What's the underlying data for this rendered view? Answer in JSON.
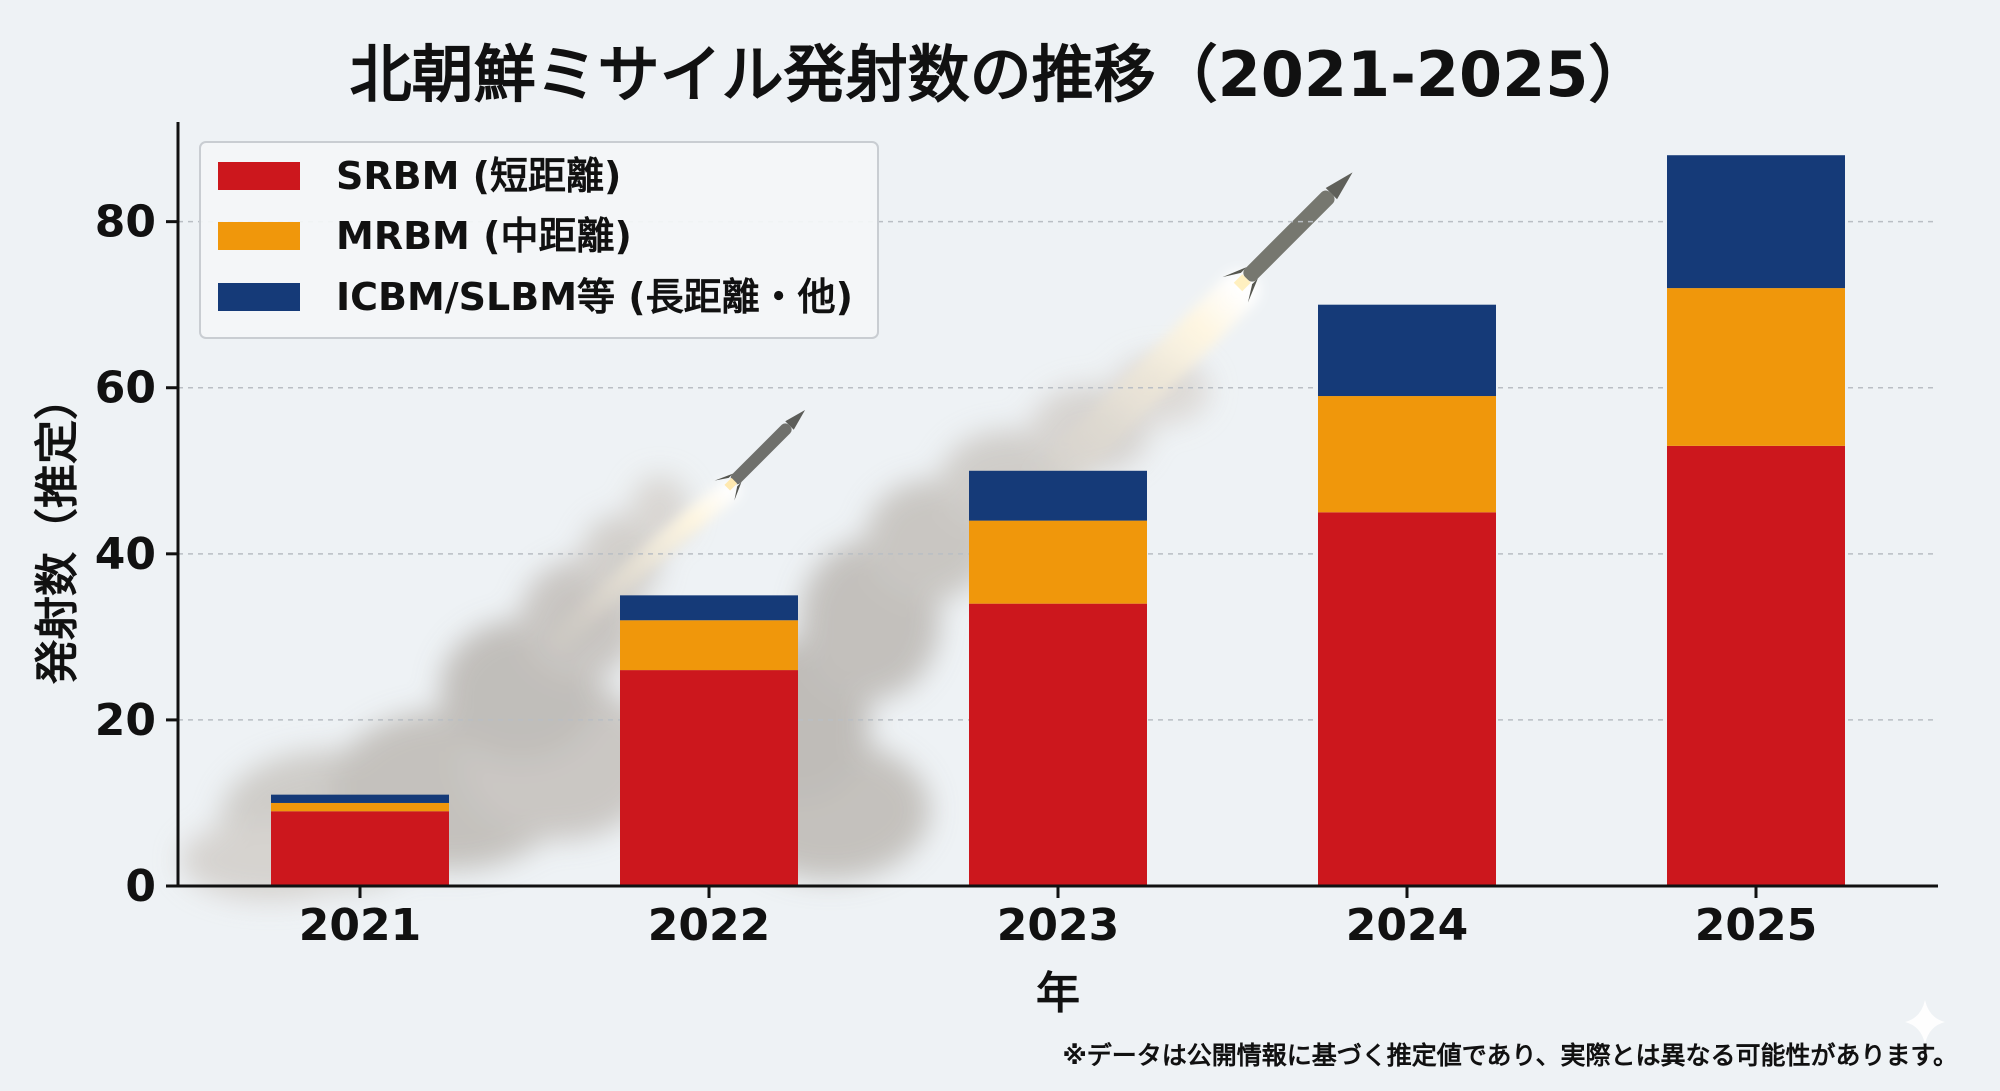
{
  "chart_data": {
    "type": "bar",
    "stacked": true,
    "title": "北朝鮮ミサイル発射数の推移（2021-2025）",
    "xlabel": "年",
    "ylabel": "発射数（推定）",
    "categories": [
      "2021",
      "2022",
      "2023",
      "2024",
      "2025"
    ],
    "yticks": [
      0,
      20,
      40,
      60,
      80
    ],
    "ylim": [
      0,
      92
    ],
    "grid": true,
    "grid_style": "dashed-horizontal",
    "legend_position": "top-left",
    "series": [
      {
        "name": "SRBM (短距離)",
        "color": "#cc171d",
        "values": [
          9,
          26,
          34,
          45,
          53
        ]
      },
      {
        "name": "MRBM (中距離)",
        "color": "#f0970b",
        "values": [
          1,
          6,
          10,
          14,
          19
        ]
      },
      {
        "name": "ICBM/SLBM等 (長距離・他)",
        "color": "#153a78",
        "values": [
          1,
          3,
          6,
          11,
          16
        ]
      }
    ],
    "footnote": "※データは公開情報に基づく推定値であり、実際とは異なる可能性があります。"
  },
  "decor": {
    "background_image": "missile-launch-icon",
    "watermark": "sparkle-icon"
  }
}
